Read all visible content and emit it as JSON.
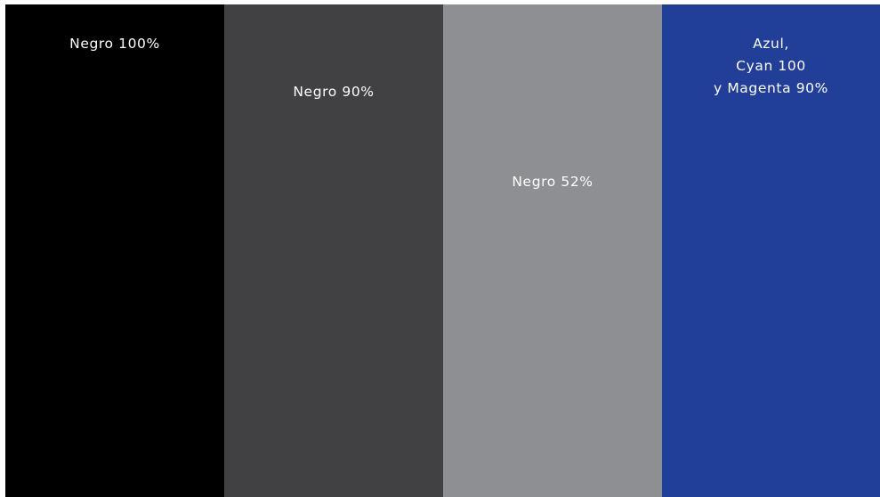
{
  "swatches": [
    {
      "label": "Negro 100%",
      "color": "#000000"
    },
    {
      "label": "Negro 90%",
      "color": "#414042"
    },
    {
      "label": "Negro 52%",
      "color": "#8e8f92"
    },
    {
      "label": "Azul,\nCyan 100\ny Magenta 90%",
      "color": "#213f99"
    }
  ]
}
